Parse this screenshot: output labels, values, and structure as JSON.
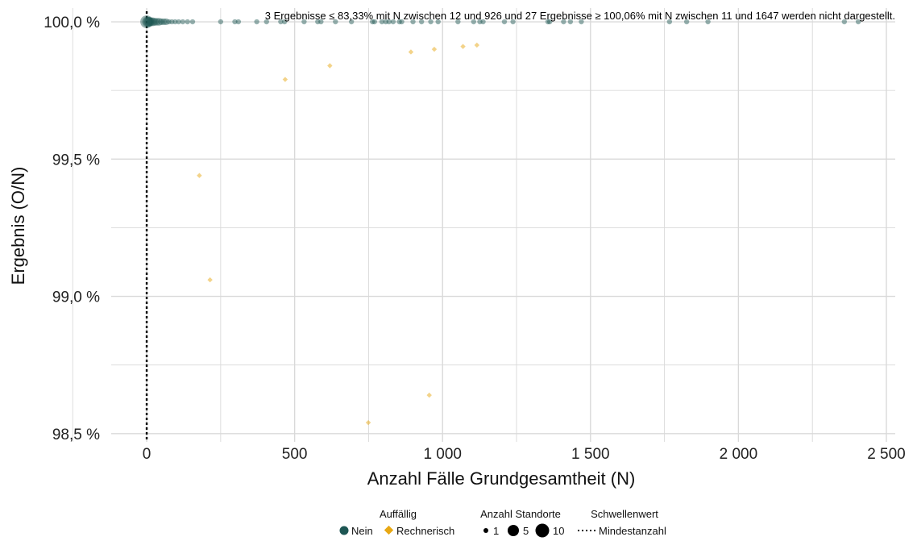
{
  "chart_data": {
    "type": "scatter",
    "note": "3 Ergebnisse ≤ 83,33% mit N zwischen 12 und 926 und 27 Ergebnisse ≥ 100,06% mit N zwischen 11 und 1647 werden nicht dargestellt.",
    "xlabel": "Anzahl Fälle Grundgesamtheit (N)",
    "ylabel": "Ergebnis (O/N)",
    "xlim": [
      -120,
      2530
    ],
    "ylim": [
      98.47,
      100.05
    ],
    "x_ticks": [
      {
        "value": 0,
        "label": "0"
      },
      {
        "value": 500,
        "label": "500"
      },
      {
        "value": 1000,
        "label": "1 000"
      },
      {
        "value": 1500,
        "label": "1 500"
      },
      {
        "value": 2000,
        "label": "2 000"
      },
      {
        "value": 2500,
        "label": "2 500"
      }
    ],
    "y_ticks": [
      {
        "value": 100.0,
        "label": "100,0 %"
      },
      {
        "value": 99.5,
        "label": "99,5 %"
      },
      {
        "value": 99.0,
        "label": "99,0 %"
      },
      {
        "value": 98.5,
        "label": "98,5 %"
      }
    ],
    "grid": true,
    "reference_line": {
      "x": 0,
      "label": "Mindestanzahl",
      "style": "dotted"
    },
    "colors": {
      "nein": "#1d5653",
      "rechnerisch": "#e8a814",
      "grid": "#d9d9d9"
    },
    "series": [
      {
        "name": "Nein",
        "color": "#1d5653",
        "points": [
          {
            "x": 0,
            "y": 100.0,
            "n": 10
          },
          {
            "x": 2,
            "y": 100.0,
            "n": 6
          },
          {
            "x": 5,
            "y": 100.0,
            "n": 5
          },
          {
            "x": 9,
            "y": 100.0,
            "n": 5
          },
          {
            "x": 14,
            "y": 100.0,
            "n": 4
          },
          {
            "x": 20,
            "y": 100.0,
            "n": 4
          },
          {
            "x": 27,
            "y": 100.0,
            "n": 3
          },
          {
            "x": 34,
            "y": 100.0,
            "n": 3
          },
          {
            "x": 42,
            "y": 100.0,
            "n": 3
          },
          {
            "x": 50,
            "y": 100.0,
            "n": 2
          },
          {
            "x": 58,
            "y": 100.0,
            "n": 2
          },
          {
            "x": 66,
            "y": 100.0,
            "n": 2
          },
          {
            "x": 75,
            "y": 100.0,
            "n": 1
          },
          {
            "x": 85,
            "y": 100.0,
            "n": 1
          },
          {
            "x": 96,
            "y": 100.0,
            "n": 1
          },
          {
            "x": 108,
            "y": 100.0,
            "n": 1
          },
          {
            "x": 122,
            "y": 100.0,
            "n": 1
          },
          {
            "x": 138,
            "y": 100.0,
            "n": 1
          },
          {
            "x": 155,
            "y": 100.0,
            "n": 1
          },
          {
            "x": 250,
            "y": 100.0,
            "n": 1
          },
          {
            "x": 298,
            "y": 100.0,
            "n": 1
          },
          {
            "x": 310,
            "y": 100.0,
            "n": 1
          },
          {
            "x": 372,
            "y": 100.0,
            "n": 1
          },
          {
            "x": 405,
            "y": 100.0,
            "n": 1
          },
          {
            "x": 453,
            "y": 100.0,
            "n": 1
          },
          {
            "x": 466,
            "y": 100.0,
            "n": 1
          },
          {
            "x": 532,
            "y": 100.0,
            "n": 1
          },
          {
            "x": 578,
            "y": 100.0,
            "n": 1
          },
          {
            "x": 589,
            "y": 100.0,
            "n": 1
          },
          {
            "x": 638,
            "y": 100.0,
            "n": 1
          },
          {
            "x": 692,
            "y": 100.0,
            "n": 1
          },
          {
            "x": 763,
            "y": 100.0,
            "n": 1
          },
          {
            "x": 770,
            "y": 100.0,
            "n": 1
          },
          {
            "x": 795,
            "y": 100.0,
            "n": 1
          },
          {
            "x": 808,
            "y": 100.0,
            "n": 1
          },
          {
            "x": 819,
            "y": 100.0,
            "n": 1
          },
          {
            "x": 833,
            "y": 100.0,
            "n": 1
          },
          {
            "x": 854,
            "y": 100.0,
            "n": 1
          },
          {
            "x": 862,
            "y": 100.0,
            "n": 1
          },
          {
            "x": 900,
            "y": 100.0,
            "n": 1
          },
          {
            "x": 929,
            "y": 100.0,
            "n": 1
          },
          {
            "x": 960,
            "y": 100.0,
            "n": 1
          },
          {
            "x": 985,
            "y": 100.0,
            "n": 1
          },
          {
            "x": 1052,
            "y": 100.0,
            "n": 1
          },
          {
            "x": 1105,
            "y": 100.0,
            "n": 1
          },
          {
            "x": 1126,
            "y": 100.0,
            "n": 1
          },
          {
            "x": 1137,
            "y": 100.0,
            "n": 1
          },
          {
            "x": 1209,
            "y": 100.0,
            "n": 1
          },
          {
            "x": 1238,
            "y": 100.0,
            "n": 1
          },
          {
            "x": 1356,
            "y": 100.0,
            "n": 1
          },
          {
            "x": 1362,
            "y": 100.0,
            "n": 1
          },
          {
            "x": 1409,
            "y": 100.0,
            "n": 1
          },
          {
            "x": 1432,
            "y": 100.0,
            "n": 1
          },
          {
            "x": 1469,
            "y": 100.0,
            "n": 1
          },
          {
            "x": 1767,
            "y": 100.0,
            "n": 1
          },
          {
            "x": 1825,
            "y": 100.0,
            "n": 1
          },
          {
            "x": 1897,
            "y": 100.0,
            "n": 1
          },
          {
            "x": 2358,
            "y": 100.0,
            "n": 1
          },
          {
            "x": 2405,
            "y": 100.0,
            "n": 1
          }
        ]
      },
      {
        "name": "Rechnerisch",
        "color": "#e8a814",
        "points": [
          {
            "x": 178,
            "y": 99.44,
            "n": 1
          },
          {
            "x": 214,
            "y": 99.06,
            "n": 1
          },
          {
            "x": 468,
            "y": 99.79,
            "n": 1
          },
          {
            "x": 619,
            "y": 99.84,
            "n": 1
          },
          {
            "x": 749,
            "y": 98.54,
            "n": 1
          },
          {
            "x": 893,
            "y": 99.89,
            "n": 1
          },
          {
            "x": 955,
            "y": 98.64,
            "n": 1
          },
          {
            "x": 972,
            "y": 99.9,
            "n": 1
          },
          {
            "x": 1069,
            "y": 99.91,
            "n": 1
          },
          {
            "x": 1116,
            "y": 99.915,
            "n": 1
          }
        ]
      }
    ],
    "legend": {
      "placement": "bottom",
      "groups": [
        {
          "title": "Auffällig",
          "items": [
            "Nein",
            "Rechnerisch"
          ]
        },
        {
          "title": "Anzahl Standorte",
          "items": [
            "1",
            "5",
            "10"
          ]
        },
        {
          "title": "Schwellenwert",
          "items": [
            "Mindestanzahl"
          ]
        }
      ]
    }
  }
}
